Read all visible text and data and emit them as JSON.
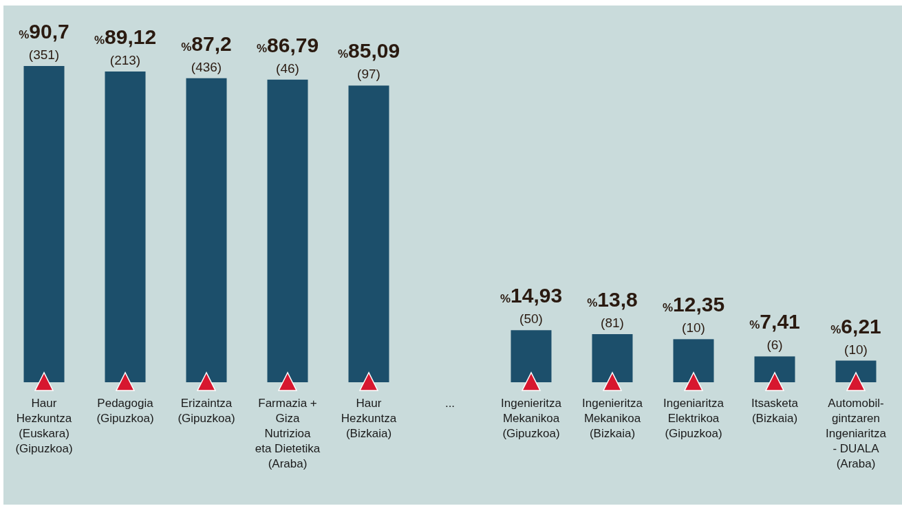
{
  "chart_data": {
    "type": "bar",
    "categories": [
      "Haur\nHezkuntza\n(Euskara)\n(Gipuzkoa)",
      "Pedagogia\n(Gipuzkoa)",
      "Erizaintza\n(Gipuzkoa)",
      "Farmazia +\nGiza\nNutrizioa\neta Dietetika\n(Araba)",
      "Haur\nHezkuntza\n(Bizkaia)",
      "...",
      "Ingenieritza\nMekanikoa\n(Gipuzkoa)",
      "Ingenieritza\nMekanikoa\n(Bizkaia)",
      "Ingeniaritza\nElektrikoa\n(Gipuzkoa)",
      "Itsasketa\n(Bizkaia)",
      "Automobil-\ngintzaren\nIngeniaritza\n- DUALA\n(Araba)"
    ],
    "values": [
      90.7,
      89.12,
      87.2,
      86.79,
      85.09,
      null,
      14.93,
      13.8,
      12.35,
      7.41,
      6.21
    ],
    "value_labels": [
      "%90,7\n(351)",
      "%89,12\n(213)",
      "%87,2\n(436)",
      "%86,79\n(46)",
      "%85,09\n(97)",
      null,
      "%14,93\n(50)",
      "%13,8\n(81)",
      "%12,35\n(10)",
      "%7,41\n(6)",
      "%6,21\n(10)"
    ],
    "color": "#1c4f6b",
    "grid": false,
    "legend": false
  }
}
